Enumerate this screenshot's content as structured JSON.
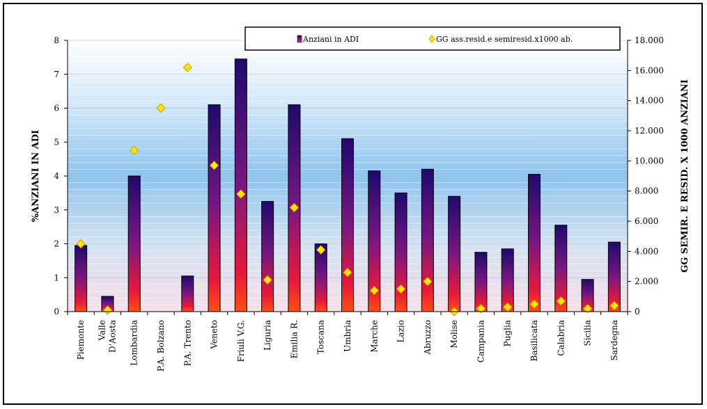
{
  "chart_data": {
    "type": "bar",
    "categories": [
      "Piemonte",
      "Valle D'Aosta",
      "Lombardia",
      "P.A. Bolzano",
      "P.A. Trento",
      "Veneto",
      "Friuli V.G.",
      "Liguria",
      "Emilia R.",
      "Toscana",
      "Umbria",
      "Marche",
      "Lazio",
      "Abruzzo",
      "Molise",
      "Campania",
      "Puglia",
      "Basilicata",
      "Calabria",
      "Sicilia",
      "Sardegna"
    ],
    "series": [
      {
        "name": "Anziani in ADI",
        "type": "bar",
        "axis": "left",
        "values": [
          1.95,
          0.45,
          4.0,
          0,
          1.05,
          6.1,
          7.45,
          3.25,
          6.1,
          2.0,
          5.1,
          4.15,
          3.5,
          4.2,
          3.4,
          1.75,
          1.85,
          4.05,
          2.55,
          0.95,
          2.05
        ]
      },
      {
        "name": "GG ass.resid.e semiresid.x1000 ab.",
        "type": "scatter",
        "axis": "right",
        "values": [
          4500,
          100,
          10700,
          13500,
          16200,
          9700,
          7800,
          2100,
          6900,
          4100,
          2600,
          1400,
          1500,
          2000,
          0,
          200,
          300,
          500,
          700,
          200,
          400
        ]
      }
    ],
    "ylabel": "%ANZIANI IN ADI",
    "y2label": "GG SEMIR. E RESID. X 1000 ANZIANI",
    "ylim": [
      0,
      8
    ],
    "y2lim": [
      0,
      18000
    ],
    "yticks": [
      "0",
      "1",
      "2",
      "3",
      "4",
      "5",
      "6",
      "7",
      "8"
    ],
    "y2ticks": [
      "0",
      "2.000",
      "4.000",
      "6.000",
      "8.000",
      "10.000",
      "12.000",
      "14.000",
      "16.000",
      "18.000"
    ],
    "legend_position": "top-right",
    "grid": true,
    "colors": {
      "bar_top": "#1e0a6e",
      "bar_mid": "#7a1780",
      "bar_bottom": "#ff2010",
      "marker_fill": "#ffe600",
      "marker_stroke": "#d4a000",
      "plot_top": "#ffffff",
      "plot_mid": "#8ec4ee",
      "plot_bottom": "#f6dfe8"
    }
  }
}
